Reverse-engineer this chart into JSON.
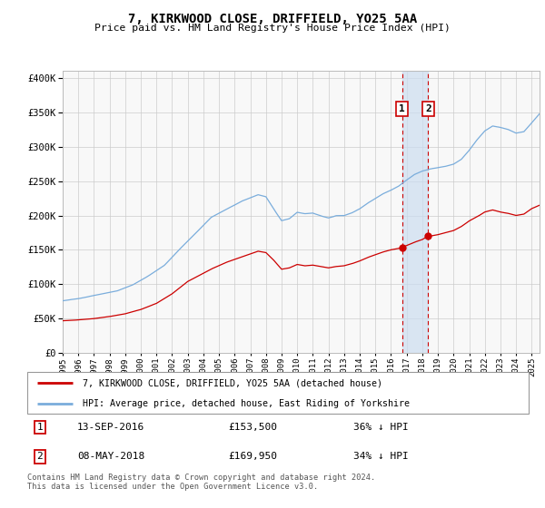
{
  "title": "7, KIRKWOOD CLOSE, DRIFFIELD, YO25 5AA",
  "subtitle": "Price paid vs. HM Land Registry's House Price Index (HPI)",
  "legend_line1": "7, KIRKWOOD CLOSE, DRIFFIELD, YO25 5AA (detached house)",
  "legend_line2": "HPI: Average price, detached house, East Riding of Yorkshire",
  "footnote": "Contains HM Land Registry data © Crown copyright and database right 2024.\nThis data is licensed under the Open Government Licence v3.0.",
  "sale1_date": "13-SEP-2016",
  "sale1_price": "£153,500",
  "sale1_pct": "36% ↓ HPI",
  "sale1_year": 2016.71,
  "sale1_value": 153500,
  "sale2_date": "08-MAY-2018",
  "sale2_price": "£169,950",
  "sale2_pct": "34% ↓ HPI",
  "sale2_year": 2018.37,
  "sale2_value": 169950,
  "hpi_color": "#7aaddc",
  "property_color": "#cc0000",
  "marker_box_color": "#cc0000",
  "shading_color": "#ccddf0",
  "ylim": [
    0,
    410000
  ],
  "xlim_start": 1995.0,
  "xlim_end": 2025.5,
  "background_color": "#f8f8f8"
}
